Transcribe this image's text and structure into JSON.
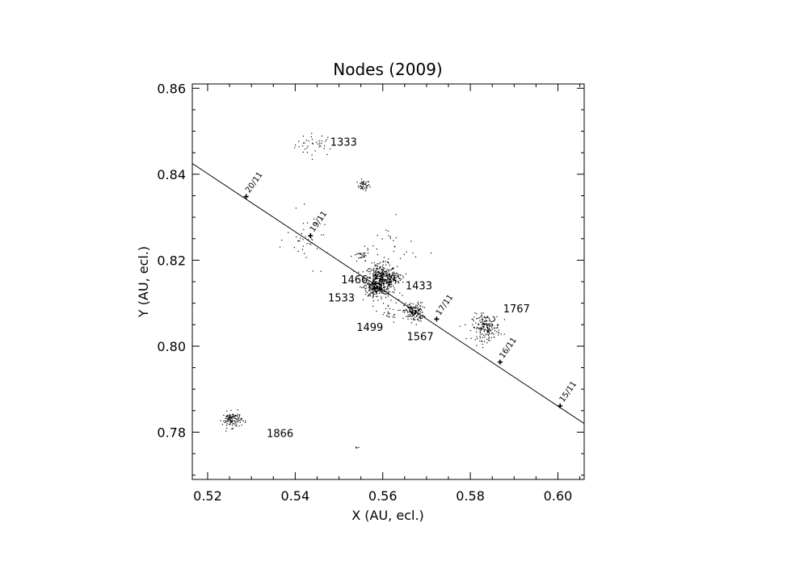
{
  "chart_data": {
    "type": "scatter",
    "title": "Nodes (2009)",
    "xlabel": "X (AU, ecl.)",
    "ylabel": "Y (AU, ecl.)",
    "xlim": [
      0.5165,
      0.606
    ],
    "ylim": [
      0.769,
      0.861
    ],
    "xticks": [
      0.52,
      0.54,
      0.56,
      0.58,
      0.6
    ],
    "xtick_labels": [
      "0.52",
      "0.54",
      "0.56",
      "0.58",
      "0.60"
    ],
    "yticks": [
      0.78,
      0.8,
      0.82,
      0.84,
      0.86
    ],
    "ytick_labels": [
      "0.78",
      "0.80",
      "0.82",
      "0.84",
      "0.86"
    ],
    "grid": false,
    "orbit_line": {
      "from": [
        0.5165,
        0.8425
      ],
      "to": [
        0.606,
        0.782
      ]
    },
    "date_markers": [
      {
        "label": "20/11",
        "x": 0.5288,
        "y": 0.8348
      },
      {
        "label": "19/11",
        "x": 0.5435,
        "y": 0.8257
      },
      {
        "label": "17/11",
        "x": 0.5723,
        "y": 0.8063
      },
      {
        "label": "16/11",
        "x": 0.5868,
        "y": 0.7963
      },
      {
        "label": "15/11",
        "x": 0.6005,
        "y": 0.7861
      }
    ],
    "clusters": [
      {
        "label": "1333",
        "x": 0.5445,
        "y": 0.847,
        "sx": 0.0023,
        "sy": 0.0013,
        "n": 40,
        "label_x": 0.548,
        "label_y": 0.8476
      },
      {
        "label": "",
        "x": 0.5555,
        "y": 0.8375,
        "sx": 0.0007,
        "sy": 0.0006,
        "n": 45
      },
      {
        "label": "1466",
        "x": 0.5595,
        "y": 0.8155,
        "sx": 0.0018,
        "sy": 0.0018,
        "n": 480,
        "label_x": 0.5505,
        "label_y": 0.8156
      },
      {
        "label": "1533",
        "x": 0.558,
        "y": 0.8135,
        "sx": 0.001,
        "sy": 0.001,
        "n": 120,
        "label_x": 0.5475,
        "label_y": 0.8113
      },
      {
        "label": "1433",
        "x": 0.5625,
        "y": 0.816,
        "sx": 0.0009,
        "sy": 0.0006,
        "n": 60,
        "label_x": 0.5652,
        "label_y": 0.8142
      },
      {
        "label": "1499",
        "x": 0.561,
        "y": 0.808,
        "sx": 0.0012,
        "sy": 0.0012,
        "n": 25,
        "label_x": 0.554,
        "label_y": 0.8045
      },
      {
        "label": "1567",
        "x": 0.567,
        "y": 0.808,
        "sx": 0.0011,
        "sy": 0.0011,
        "n": 160,
        "label_x": 0.5655,
        "label_y": 0.8023
      },
      {
        "label": "1767",
        "x": 0.5835,
        "y": 0.8045,
        "sx": 0.0016,
        "sy": 0.0015,
        "n": 190,
        "label_x": 0.5875,
        "label_y": 0.8088
      },
      {
        "label": "1866",
        "x": 0.5255,
        "y": 0.783,
        "sx": 0.0011,
        "sy": 0.0009,
        "n": 120,
        "label_x": 0.5335,
        "label_y": 0.7798
      },
      {
        "label": "",
        "x": 0.543,
        "y": 0.825,
        "sx": 0.0025,
        "sy": 0.003,
        "n": 40
      },
      {
        "label": "",
        "x": 0.555,
        "y": 0.821,
        "sx": 0.0009,
        "sy": 0.0008,
        "n": 30
      },
      {
        "label": "",
        "x": 0.554,
        "y": 0.7765,
        "sx": 0.0004,
        "sy": 0.0001,
        "n": 4
      },
      {
        "label": "",
        "x": 0.562,
        "y": 0.823,
        "sx": 0.003,
        "sy": 0.003,
        "n": 25
      }
    ]
  }
}
